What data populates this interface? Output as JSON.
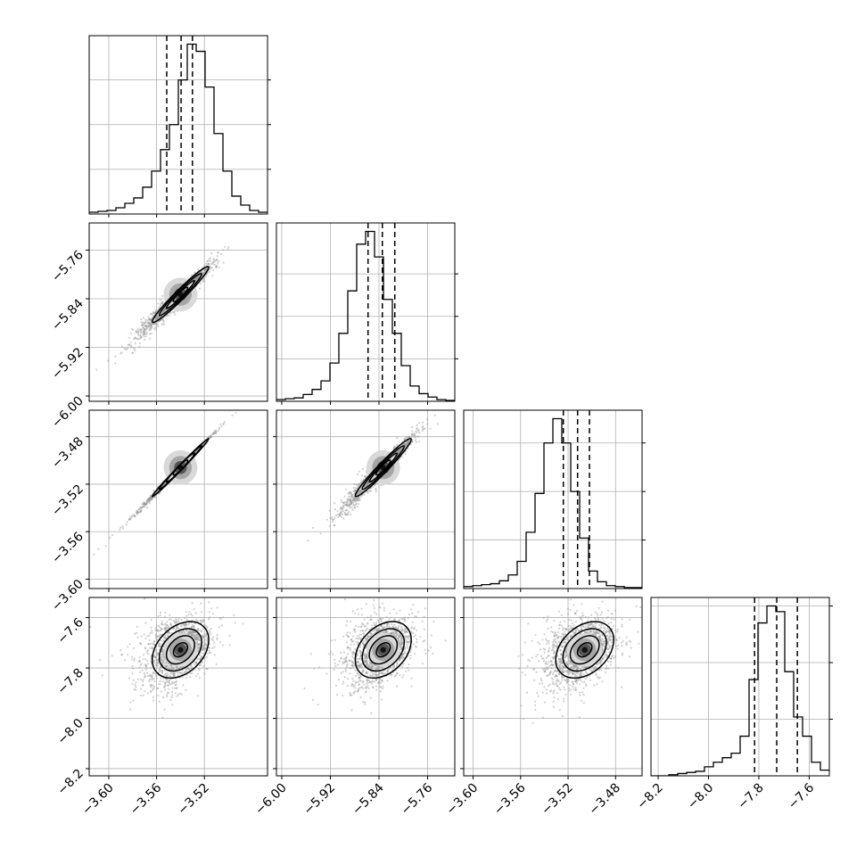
{
  "chart_data": {
    "type": "corner",
    "grid": true,
    "quantiles": [
      0.16,
      0.5,
      0.84
    ],
    "parameters": [
      {
        "mean": -3.54,
        "sd": 0.0118,
        "range": [
          -3.6164,
          -3.4672
        ],
        "ticks": [
          -3.6,
          -3.56,
          -3.52
        ],
        "tick_labels": [
          "−3.60",
          "−3.56",
          "−3.52"
        ]
      },
      {
        "mean": -5.833,
        "sd": 0.023,
        "range": [
          -6.0087,
          -5.7153
        ],
        "ticks": [
          -6.0,
          -5.92,
          -5.84,
          -5.76
        ],
        "tick_labels": [
          "−6.00",
          "−5.92",
          "−5.84",
          "−5.76"
        ]
      },
      {
        "mean": -3.506,
        "sd": 0.0122,
        "range": [
          -3.6079,
          -3.4577
        ],
        "ticks": [
          -3.6,
          -3.56,
          -3.52,
          -3.48
        ],
        "tick_labels": [
          "−3.60",
          "−3.56",
          "−3.52",
          "−3.48"
        ]
      },
      {
        "mean": -7.728,
        "sd": 0.056,
        "range": [
          -8.2285,
          -7.52
        ],
        "ticks": [
          -8.2,
          -8.0,
          -7.8,
          -7.6
        ],
        "tick_labels": [
          "−8.2",
          "−8.0",
          "−7.8",
          "−7.6"
        ]
      }
    ],
    "histograms": [
      {
        "param": 0,
        "quantile_values": [
          -3.5515,
          -3.5395,
          -3.53
        ],
        "counts": [
          2,
          3,
          4,
          7,
          12,
          18,
          30,
          48,
          72,
          100,
          150,
          190,
          182,
          142,
          90,
          48,
          20,
          10,
          4,
          2
        ],
        "hist_yticks": [
          50,
          100,
          150
        ]
      },
      {
        "param": 1,
        "quantile_values": [
          -5.858,
          -5.8345,
          -5.814
        ],
        "counts": [
          2,
          3,
          4,
          8,
          14,
          24,
          45,
          80,
          130,
          185,
          200,
          170,
          120,
          80,
          42,
          18,
          9,
          5,
          2,
          1
        ],
        "hist_yticks": [
          50,
          100,
          150
        ]
      },
      {
        "param": 2,
        "quantile_values": [
          -3.524,
          -3.512,
          -3.502
        ],
        "counts": [
          2,
          3,
          4,
          5,
          8,
          14,
          28,
          58,
          98,
          150,
          175,
          150,
          100,
          52,
          18,
          7,
          3,
          2,
          1,
          1
        ],
        "hist_yticks": [
          50,
          100,
          150
        ]
      },
      {
        "param": 3,
        "quantile_values": [
          -7.817,
          -7.729,
          -7.647
        ],
        "counts": [
          0,
          0,
          1,
          2,
          3,
          4,
          8,
          12,
          16,
          20,
          35,
          85,
          135,
          150,
          145,
          92,
          52,
          35,
          12,
          5
        ],
        "hist_yticks": [
          50,
          100,
          150
        ]
      }
    ],
    "pairs": [
      {
        "x_param": 0,
        "y_param": 1,
        "correlation": 0.97
      },
      {
        "x_param": 0,
        "y_param": 2,
        "correlation": 0.998
      },
      {
        "x_param": 1,
        "y_param": 2,
        "correlation": 0.97
      },
      {
        "x_param": 0,
        "y_param": 3,
        "correlation": 0.35
      },
      {
        "x_param": 1,
        "y_param": 3,
        "correlation": 0.35
      },
      {
        "x_param": 2,
        "y_param": 3,
        "correlation": 0.35
      }
    ],
    "contour_levels_sigma": [
      0.5,
      1.0,
      1.5,
      2.0
    ]
  }
}
